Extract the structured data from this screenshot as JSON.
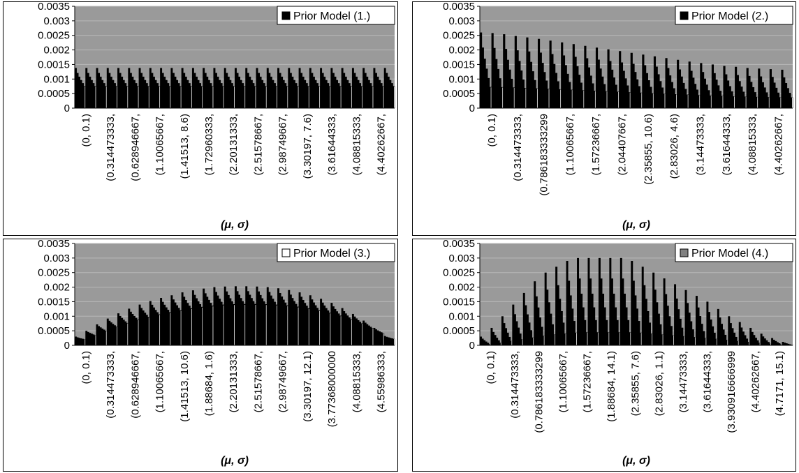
{
  "chart_data": [
    {
      "type": "bar",
      "legend": "Prior Model (1.)",
      "legend_swatch": "#000000",
      "legend_position": "top-right",
      "xlabel": "(μ, σ)",
      "yticks": [
        "0",
        "0.0005",
        "0.001",
        "0.0015",
        "0.002",
        "0.0025",
        "0.003",
        "0.0035"
      ],
      "ylim": [
        0,
        0.0035
      ],
      "x_tick_labels": [
        "(0, 0.1)",
        "(0.314473333,",
        "(0.628946667,",
        "(1.10065667,",
        "(1.41513, 8.6)",
        "(1.72960333,",
        "(2.20131333,",
        "(2.51578667,",
        "(2.98749667,",
        "(3.30197, 7.6)",
        "(3.61644333,",
        "(4.08815333,",
        "(4.40262667,"
      ],
      "group_peaks": [
        0.00138,
        0.00138,
        0.00138,
        0.00138,
        0.00138,
        0.00138,
        0.00138,
        0.00138,
        0.00138,
        0.00138,
        0.00138,
        0.00138,
        0.00138,
        0.00138,
        0.00138,
        0.00138,
        0.00138,
        0.00138,
        0.00138,
        0.00138,
        0.00138,
        0.00138,
        0.00138,
        0.00138,
        0.00138,
        0.00138,
        0.00138,
        0.00138,
        0.00138,
        0.00138
      ],
      "group_floor_ratio": 0.55,
      "bar_color": "#000000",
      "plot_background": "#9a9a9a"
    },
    {
      "type": "bar",
      "legend": "Prior Model (2.)",
      "legend_swatch": "#000000",
      "legend_position": "top-right",
      "xlabel": "(μ, σ)",
      "yticks": [
        "0",
        "0.0005",
        "0.001",
        "0.0015",
        "0.002",
        "0.0025",
        "0.003",
        "0.0035"
      ],
      "ylim": [
        0,
        0.0035
      ],
      "x_tick_labels": [
        "(0, 0.1)",
        "(0.314473333,",
        "(0.786183333299",
        "(1.10065667,",
        "(1.57236667,",
        "(2.04407667,",
        "(2.35855, 10.6)",
        "(2.83026, 4.6)",
        "(3.14473333,",
        "(3.61644333,",
        "(4.08815333,",
        "(4.40262667,"
      ],
      "group_peaks": [
        0.0026,
        0.00258,
        0.00254,
        0.00248,
        0.00243,
        0.00238,
        0.00232,
        0.00226,
        0.0022,
        0.00214,
        0.00208,
        0.00202,
        0.00196,
        0.0019,
        0.00184,
        0.00178,
        0.00172,
        0.00166,
        0.0016,
        0.00155,
        0.0015,
        0.00145,
        0.00142,
        0.00138,
        0.00136,
        0.00134,
        0.00132
      ],
      "group_floor_ratio": 0.28,
      "bar_color": "#000000",
      "plot_background": "#9a9a9a"
    },
    {
      "type": "bar",
      "legend": "Prior Model (3.)",
      "legend_swatch": "#ffffff",
      "legend_position": "top-right",
      "xlabel": "(μ, σ)",
      "yticks": [
        "0",
        "0.0005",
        "0.001",
        "0.0015",
        "0.002",
        "0.0025",
        "0.003",
        "0.0035"
      ],
      "ylim": [
        0,
        0.0035
      ],
      "x_tick_labels": [
        "(0, 0.1)",
        "(0.314473333,",
        "(0.628946667,",
        "(1.10065667,",
        "(1.41513, 10.6)",
        "(1.88684, 1.6)",
        "(2.20131333,",
        "(2.51578667,",
        "(2.98749667,",
        "(3.30197, 12.1)",
        "(3.77368000000",
        "(4.08815333,",
        "(4.55986333,"
      ],
      "group_peaks": [
        0.0003,
        0.0005,
        0.00072,
        0.00092,
        0.0011,
        0.00126,
        0.0014,
        0.00152,
        0.00163,
        0.00172,
        0.00182,
        0.00189,
        0.00195,
        0.002,
        0.00202,
        0.00203,
        0.00203,
        0.00202,
        0.002,
        0.00196,
        0.0019,
        0.00182,
        0.00172,
        0.0016,
        0.00146,
        0.00128,
        0.00108,
        0.00085,
        0.0006,
        0.00032
      ],
      "group_floor_ratio": 0.7,
      "bar_color": "#000000",
      "plot_background": "#9a9a9a"
    },
    {
      "type": "bar",
      "legend": "Prior Model (4.)",
      "legend_swatch": "#808080",
      "legend_position": "top-right",
      "xlabel": "(μ, σ)",
      "yticks": [
        "0",
        "0.0005",
        "0.001",
        "0.0015",
        "0.002",
        "0.0025",
        "0.003",
        "0.0035"
      ],
      "ylim": [
        0,
        0.0035
      ],
      "x_tick_labels": [
        "(0, 0.1)",
        "(0.314473333,",
        "(0.786183333299",
        "(1.10065667,",
        "(1.57236667,",
        "(1.88684, 14.1)",
        "(2.35855, 7.6)",
        "(2.83026, 1.1)",
        "(3.14473333,",
        "(3.61644333,",
        "(3.930916666999",
        "(4.40262667,",
        "(4.7171, 15.1)"
      ],
      "group_peaks": [
        0.0003,
        0.0006,
        0.001,
        0.0014,
        0.0018,
        0.0022,
        0.0025,
        0.0027,
        0.0029,
        0.003,
        0.003,
        0.003,
        0.003,
        0.003,
        0.0029,
        0.0027,
        0.0025,
        0.0023,
        0.0021,
        0.0019,
        0.0017,
        0.0015,
        0.00125,
        0.001,
        0.0008,
        0.0006,
        0.0004,
        0.00025,
        0.00012
      ],
      "group_floor_ratio": 0.15,
      "bar_color": "#000000",
      "plot_background": "#9a9a9a"
    }
  ]
}
